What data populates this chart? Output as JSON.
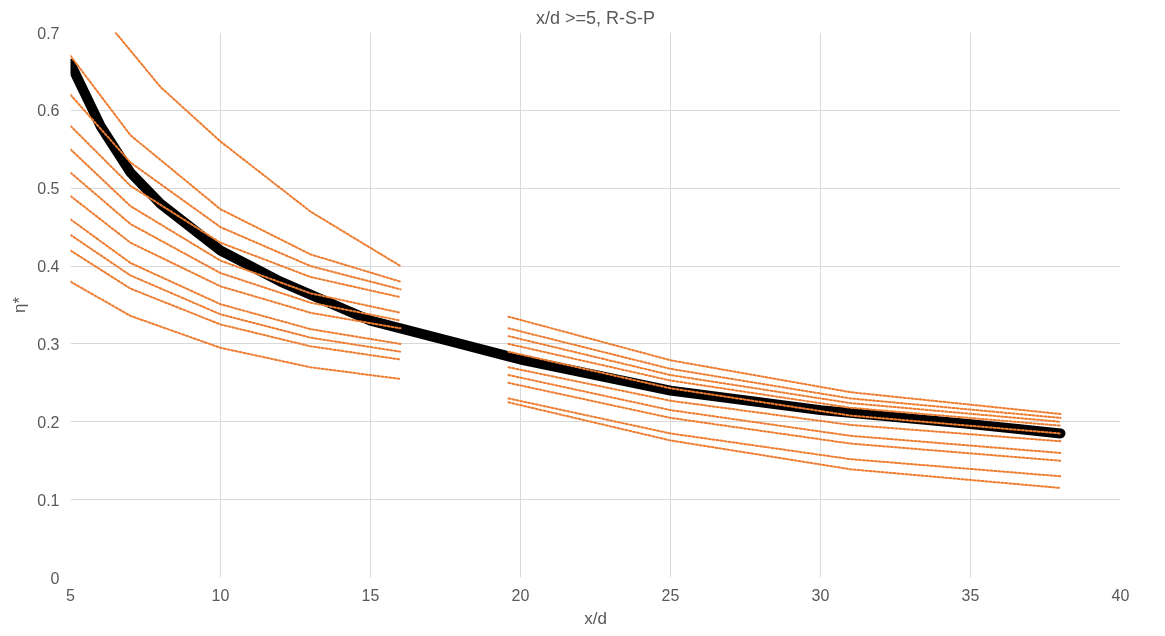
{
  "chart_data": {
    "type": "line",
    "title": "x/d >=5, R-S-P",
    "xlabel": "x/d",
    "ylabel": "η*",
    "xlim": [
      5,
      40
    ],
    "xticks": [
      5,
      10,
      15,
      20,
      25,
      30,
      35,
      40
    ],
    "ylim": [
      0,
      0.7
    ],
    "yticks": [
      0,
      0.1,
      0.2,
      0.3,
      0.4,
      0.5,
      0.6,
      0.7
    ],
    "grid": true,
    "series": [
      {
        "color": "#ed7d31",
        "line_style": "dotted",
        "x": [
          6.5,
          8,
          10,
          13,
          16
        ],
        "values": [
          0.7,
          0.63,
          0.56,
          0.47,
          0.4
        ]
      },
      {
        "color": "#ed7d31",
        "line_style": "dotted",
        "x": [
          5,
          7,
          10,
          13,
          16
        ],
        "values": [
          0.67,
          0.568,
          0.473,
          0.415,
          0.38
        ]
      },
      {
        "color": "#ed7d31",
        "line_style": "dotted",
        "x": [
          5,
          7,
          10,
          13,
          16
        ],
        "values": [
          0.62,
          0.533,
          0.45,
          0.4,
          0.37
        ]
      },
      {
        "color": "#ed7d31",
        "line_style": "dotted",
        "x": [
          5,
          7,
          10,
          13,
          16
        ],
        "values": [
          0.58,
          0.503,
          0.43,
          0.386,
          0.36
        ]
      },
      {
        "color": "#ed7d31",
        "line_style": "dotted",
        "x": [
          5,
          7,
          10,
          13,
          16
        ],
        "values": [
          0.55,
          0.477,
          0.407,
          0.365,
          0.34
        ]
      },
      {
        "color": "#ed7d31",
        "line_style": "dotted",
        "x": [
          5,
          7,
          10,
          13,
          16
        ],
        "values": [
          0.52,
          0.454,
          0.391,
          0.353,
          0.33
        ]
      },
      {
        "color": "#ed7d31",
        "line_style": "dotted",
        "x": [
          5,
          7,
          10,
          13,
          16
        ],
        "values": [
          0.49,
          0.43,
          0.374,
          0.34,
          0.32
        ]
      },
      {
        "color": "#ed7d31",
        "line_style": "dotted",
        "x": [
          5,
          7,
          10,
          13,
          16
        ],
        "values": [
          0.46,
          0.404,
          0.351,
          0.319,
          0.3
        ]
      },
      {
        "color": "#ed7d31",
        "line_style": "dotted",
        "x": [
          5,
          7,
          10,
          13,
          16
        ],
        "values": [
          0.44,
          0.388,
          0.338,
          0.308,
          0.29
        ]
      },
      {
        "color": "#ed7d31",
        "line_style": "dotted",
        "x": [
          5,
          7,
          10,
          13,
          16
        ],
        "values": [
          0.42,
          0.371,
          0.325,
          0.297,
          0.28
        ]
      },
      {
        "color": "#ed7d31",
        "line_style": "dotted",
        "x": [
          5,
          7,
          10,
          13,
          16
        ],
        "values": [
          0.38,
          0.336,
          0.295,
          0.27,
          0.255
        ]
      },
      {
        "color": "#ed7d31",
        "line_style": "dotted",
        "x": [
          19.6,
          25,
          31,
          38
        ],
        "values": [
          0.335,
          0.279,
          0.238,
          0.21
        ]
      },
      {
        "color": "#ed7d31",
        "line_style": "dotted",
        "x": [
          19.6,
          25,
          31,
          38
        ],
        "values": [
          0.32,
          0.268,
          0.23,
          0.205
        ]
      },
      {
        "color": "#ed7d31",
        "line_style": "dotted",
        "x": [
          19.6,
          25,
          31,
          38
        ],
        "values": [
          0.31,
          0.26,
          0.224,
          0.2
        ]
      },
      {
        "color": "#ed7d31",
        "line_style": "dotted",
        "x": [
          19.6,
          25,
          31,
          38
        ],
        "values": [
          0.3,
          0.253,
          0.218,
          0.195
        ]
      },
      {
        "color": "#ed7d31",
        "line_style": "dotted",
        "x": [
          19.6,
          25,
          31,
          38
        ],
        "values": [
          0.29,
          0.243,
          0.208,
          0.185
        ]
      },
      {
        "color": "#ed7d31",
        "line_style": "dotted",
        "x": [
          19.6,
          25,
          31,
          38
        ],
        "values": [
          0.27,
          0.227,
          0.196,
          0.175
        ]
      },
      {
        "color": "#ed7d31",
        "line_style": "dotted",
        "x": [
          19.6,
          25,
          31,
          38
        ],
        "values": [
          0.26,
          0.215,
          0.182,
          0.16
        ]
      },
      {
        "color": "#ed7d31",
        "line_style": "dotted",
        "x": [
          19.6,
          25,
          31,
          38
        ],
        "values": [
          0.25,
          0.205,
          0.172,
          0.15
        ]
      },
      {
        "color": "#ed7d31",
        "line_style": "dotted",
        "x": [
          19.6,
          25,
          31,
          38
        ],
        "values": [
          0.23,
          0.185,
          0.152,
          0.13
        ]
      },
      {
        "color": "#ed7d31",
        "line_style": "dotted",
        "x": [
          19.6,
          25,
          31,
          38
        ],
        "values": [
          0.225,
          0.176,
          0.139,
          0.115
        ]
      },
      {
        "color": "#000000",
        "line_style": "solid",
        "x": [
          5,
          6,
          7,
          8,
          10,
          12,
          15,
          18,
          20,
          25,
          30,
          35,
          38
        ],
        "values": [
          0.66,
          0.58,
          0.52,
          0.48,
          0.42,
          0.38,
          0.33,
          0.3,
          0.28,
          0.24,
          0.215,
          0.197,
          0.185
        ]
      }
    ]
  }
}
